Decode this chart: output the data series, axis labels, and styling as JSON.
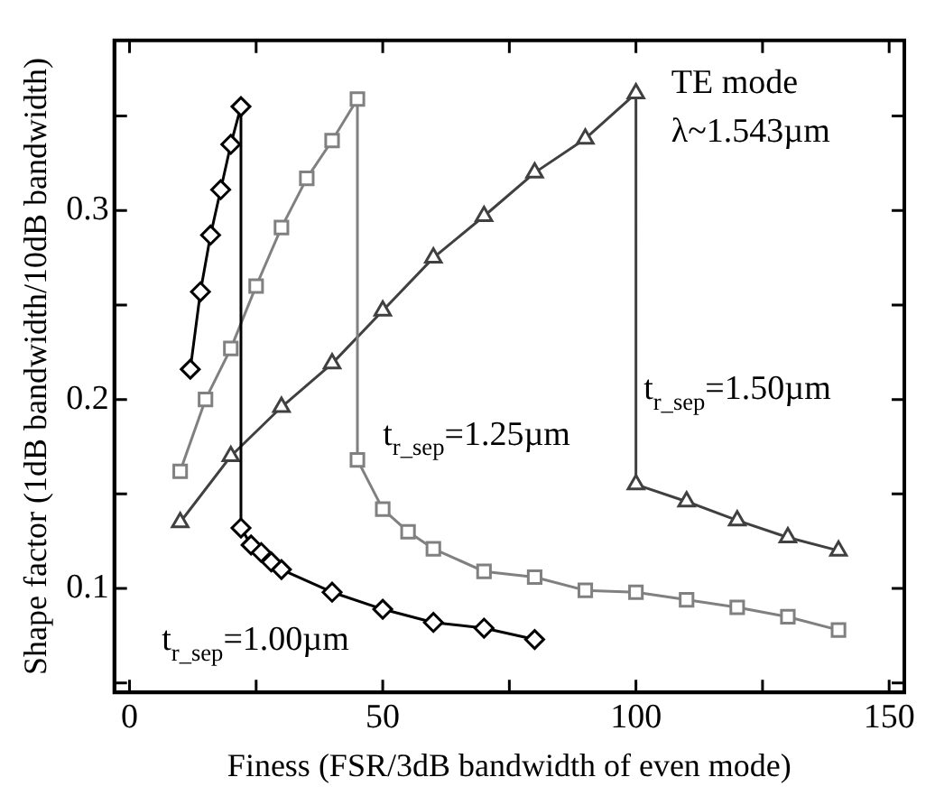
{
  "chart_data": {
    "type": "line",
    "xlabel": "Finess (FSR/3dB bandwidth of even mode)",
    "ylabel": "Shape factor (1dB bandwidth/10dB bandwidth)",
    "xlim": [
      -3,
      153
    ],
    "xticks": [
      0,
      {
        "value": 25,
        "label": null
      },
      50,
      {
        "value": 75,
        "label": null
      },
      100,
      {
        "value": 125,
        "label": null
      },
      150
    ],
    "ylim": [
      0.045,
      0.39
    ],
    "yticks": [
      {
        "value": 0.05,
        "label": null
      },
      0.1,
      {
        "value": 0.15,
        "label": null
      },
      0.2,
      {
        "value": 0.25,
        "label": null
      },
      0.3,
      {
        "value": 0.35,
        "label": null
      }
    ],
    "grid": false,
    "legend": false,
    "line_style": "solid",
    "series": [
      {
        "color": "#000000",
        "marker": "diamond",
        "x": [
          12,
          14,
          16,
          18,
          20,
          22,
          22,
          24,
          26,
          28,
          30,
          40,
          50,
          60,
          70,
          80
        ],
        "values": [
          0.216,
          0.257,
          0.287,
          0.311,
          0.335,
          0.355,
          0.132,
          0.123,
          0.119,
          0.114,
          0.11,
          0.098,
          0.089,
          0.082,
          0.079,
          0.073
        ]
      },
      {
        "color": "#808080",
        "marker": "square",
        "x": [
          10,
          15,
          20,
          25,
          30,
          35,
          40,
          45,
          45,
          50,
          55,
          60,
          70,
          80,
          90,
          100,
          110,
          120,
          130,
          140
        ],
        "values": [
          0.162,
          0.2,
          0.227,
          0.26,
          0.291,
          0.317,
          0.337,
          0.359,
          0.168,
          0.142,
          0.13,
          0.121,
          0.109,
          0.106,
          0.099,
          0.098,
          0.094,
          0.09,
          0.085,
          0.078
        ]
      },
      {
        "color": "#404040",
        "marker": "triangle",
        "x": [
          10,
          20,
          30,
          40,
          50,
          60,
          70,
          80,
          90,
          100,
          100,
          110,
          120,
          130,
          140
        ],
        "values": [
          0.135,
          0.17,
          0.196,
          0.219,
          0.247,
          0.275,
          0.297,
          0.32,
          0.338,
          0.362,
          0.155,
          0.146,
          0.136,
          0.127,
          0.12
        ]
      }
    ],
    "annotations": [
      "TE mode",
      "λ~1.543µm",
      "t$_{r_sep}$=1.00µm",
      "t$_{r_sep}$=1.25µm",
      "t$_{r_sep}$=1.50µm"
    ]
  }
}
